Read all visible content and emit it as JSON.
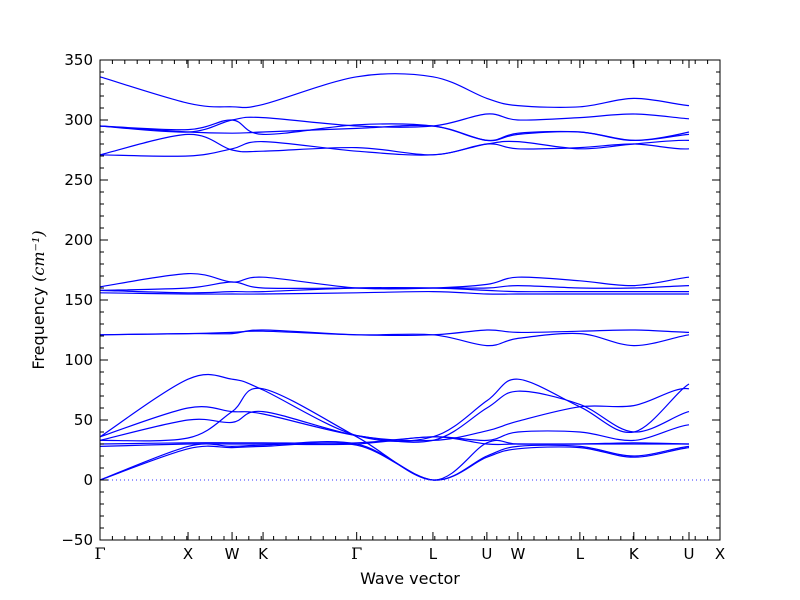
{
  "chart_data": {
    "type": "line",
    "title": "",
    "xlabel": "Wave vector",
    "ylabel": "Frequency ",
    "ylabel_unit": "(cm⁻¹)",
    "ylim": [
      -50,
      350
    ],
    "yticks": [
      -50,
      0,
      50,
      100,
      150,
      200,
      250,
      300,
      350
    ],
    "xlim": [
      0,
      100
    ],
    "grid": false,
    "legend": "none",
    "line_color": "#0000ff",
    "zero_line_color": "#3333ff",
    "high_symmetry_points": [
      {
        "label": "Γ",
        "x": 0
      },
      {
        "label": "X",
        "x": 14.2
      },
      {
        "label": "W",
        "x": 21.3
      },
      {
        "label": "K",
        "x": 26.3
      },
      {
        "label": "Γ",
        "x": 41.4
      },
      {
        "label": "L",
        "x": 53.7
      },
      {
        "label": "U",
        "x": 62.4
      },
      {
        "label": "W",
        "x": 67.4
      },
      {
        "label": "L",
        "x": 77.4
      },
      {
        "label": "K",
        "x": 86.1
      },
      {
        "label": "U",
        "x": 95
      },
      {
        "label": "X",
        "x": 100
      }
    ],
    "series": [
      {
        "values": [
          0,
          26,
          27,
          28,
          29,
          0,
          19,
          26,
          27,
          19,
          27,
          26,
          26
        ]
      },
      {
        "values": [
          0,
          28,
          28,
          29,
          30,
          0,
          20,
          28,
          28,
          20,
          28,
          27,
          27
        ]
      },
      {
        "values": [
          33,
          35,
          57,
          76,
          36,
          0,
          31,
          30,
          30,
          31,
          30,
          30,
          31
        ]
      },
      {
        "values": [
          33,
          50,
          48,
          57,
          37,
          33,
          41,
          49,
          61,
          62,
          76,
          48,
          60
        ]
      },
      {
        "values": [
          36,
          60,
          57,
          55,
          37,
          33,
          60,
          74,
          63,
          40,
          57,
          57,
          60
        ]
      },
      {
        "values": [
          36,
          84,
          84,
          75,
          37,
          36,
          66,
          84,
          61,
          40,
          80,
          84,
          85
        ]
      },
      {
        "values": [
          28,
          30,
          30,
          30,
          30,
          36,
          30,
          30,
          30,
          30,
          30,
          30,
          30
        ]
      },
      {
        "values": [
          30,
          31,
          31,
          31,
          31,
          36,
          33,
          40,
          40,
          33,
          46,
          39,
          40
        ]
      },
      {
        "values": [
          121,
          122,
          123,
          124,
          121,
          121,
          112,
          118,
          122,
          112,
          121,
          122,
          121
        ]
      },
      {
        "values": [
          121,
          122,
          122,
          125,
          121,
          121,
          125,
          123,
          124,
          125,
          123,
          123,
          123
        ]
      },
      {
        "values": [
          161,
          172,
          165,
          169,
          160,
          160,
          163,
          169,
          166,
          162,
          169,
          169,
          172
        ]
      },
      {
        "values": [
          158,
          160,
          165,
          160,
          160,
          160,
          160,
          162,
          160,
          160,
          162,
          162,
          161
        ]
      },
      {
        "values": [
          158,
          156,
          157,
          157,
          160,
          160,
          158,
          157,
          157,
          157,
          157,
          157,
          155
        ]
      },
      {
        "values": [
          156,
          155,
          155,
          155,
          156,
          157,
          155,
          155,
          155,
          155,
          155,
          155,
          156
        ]
      },
      {
        "values": [
          271,
          270,
          276,
          282,
          274,
          271,
          280,
          282,
          276,
          280,
          283,
          276,
          270
        ]
      },
      {
        "values": [
          271,
          288,
          275,
          274,
          277,
          271,
          280,
          276,
          277,
          280,
          276,
          287,
          290
        ]
      },
      {
        "values": [
          295,
          290,
          289,
          290,
          293,
          295,
          283,
          288,
          290,
          283,
          288,
          289,
          290
        ]
      },
      {
        "values": [
          295,
          292,
          300,
          288,
          296,
          295,
          283,
          289,
          290,
          283,
          290,
          300,
          291
        ]
      },
      {
        "values": [
          295,
          290,
          300,
          302,
          295,
          295,
          305,
          300,
          302,
          305,
          301,
          300,
          290
        ]
      },
      {
        "values": [
          336,
          314,
          311,
          313,
          336,
          336,
          318,
          312,
          311,
          318,
          312,
          312,
          314
        ]
      }
    ]
  }
}
